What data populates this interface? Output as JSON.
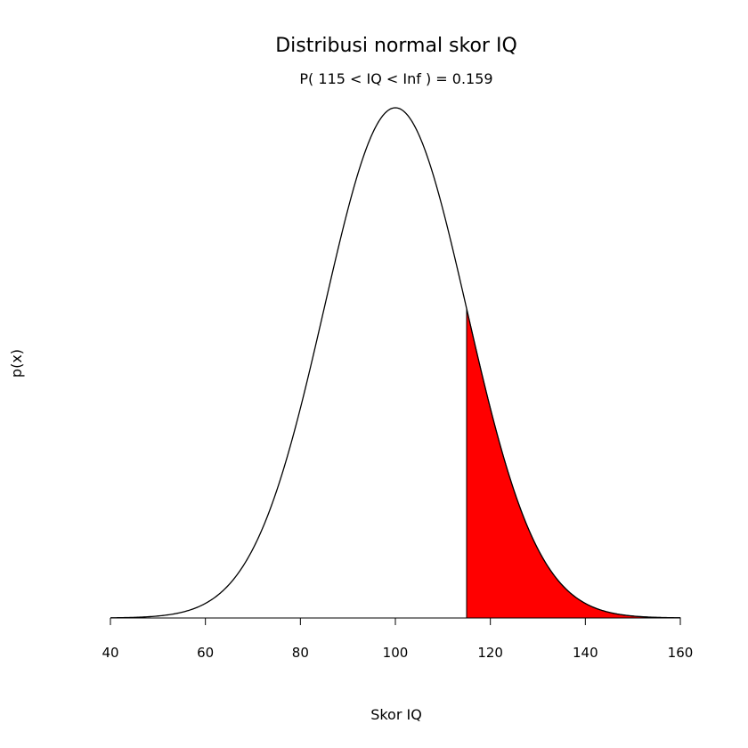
{
  "chart_data": {
    "type": "area",
    "title": "Distribusi normal skor IQ",
    "subtitle": "P( 115 < IQ < Inf ) = 0.159",
    "xlabel": "Skor IQ",
    "ylabel": "p(x)",
    "xlim": [
      40,
      160
    ],
    "x_ticks": [
      "40",
      "60",
      "80",
      "100",
      "120",
      "140",
      "160"
    ],
    "distribution": {
      "mean": 100,
      "sd": 15
    },
    "shaded_region": {
      "from": 115,
      "to": 160,
      "probability": 0.159
    },
    "colors": {
      "shade": "#ff0000",
      "curve": "#000000"
    },
    "grid": false,
    "y_axis_shown": false
  }
}
